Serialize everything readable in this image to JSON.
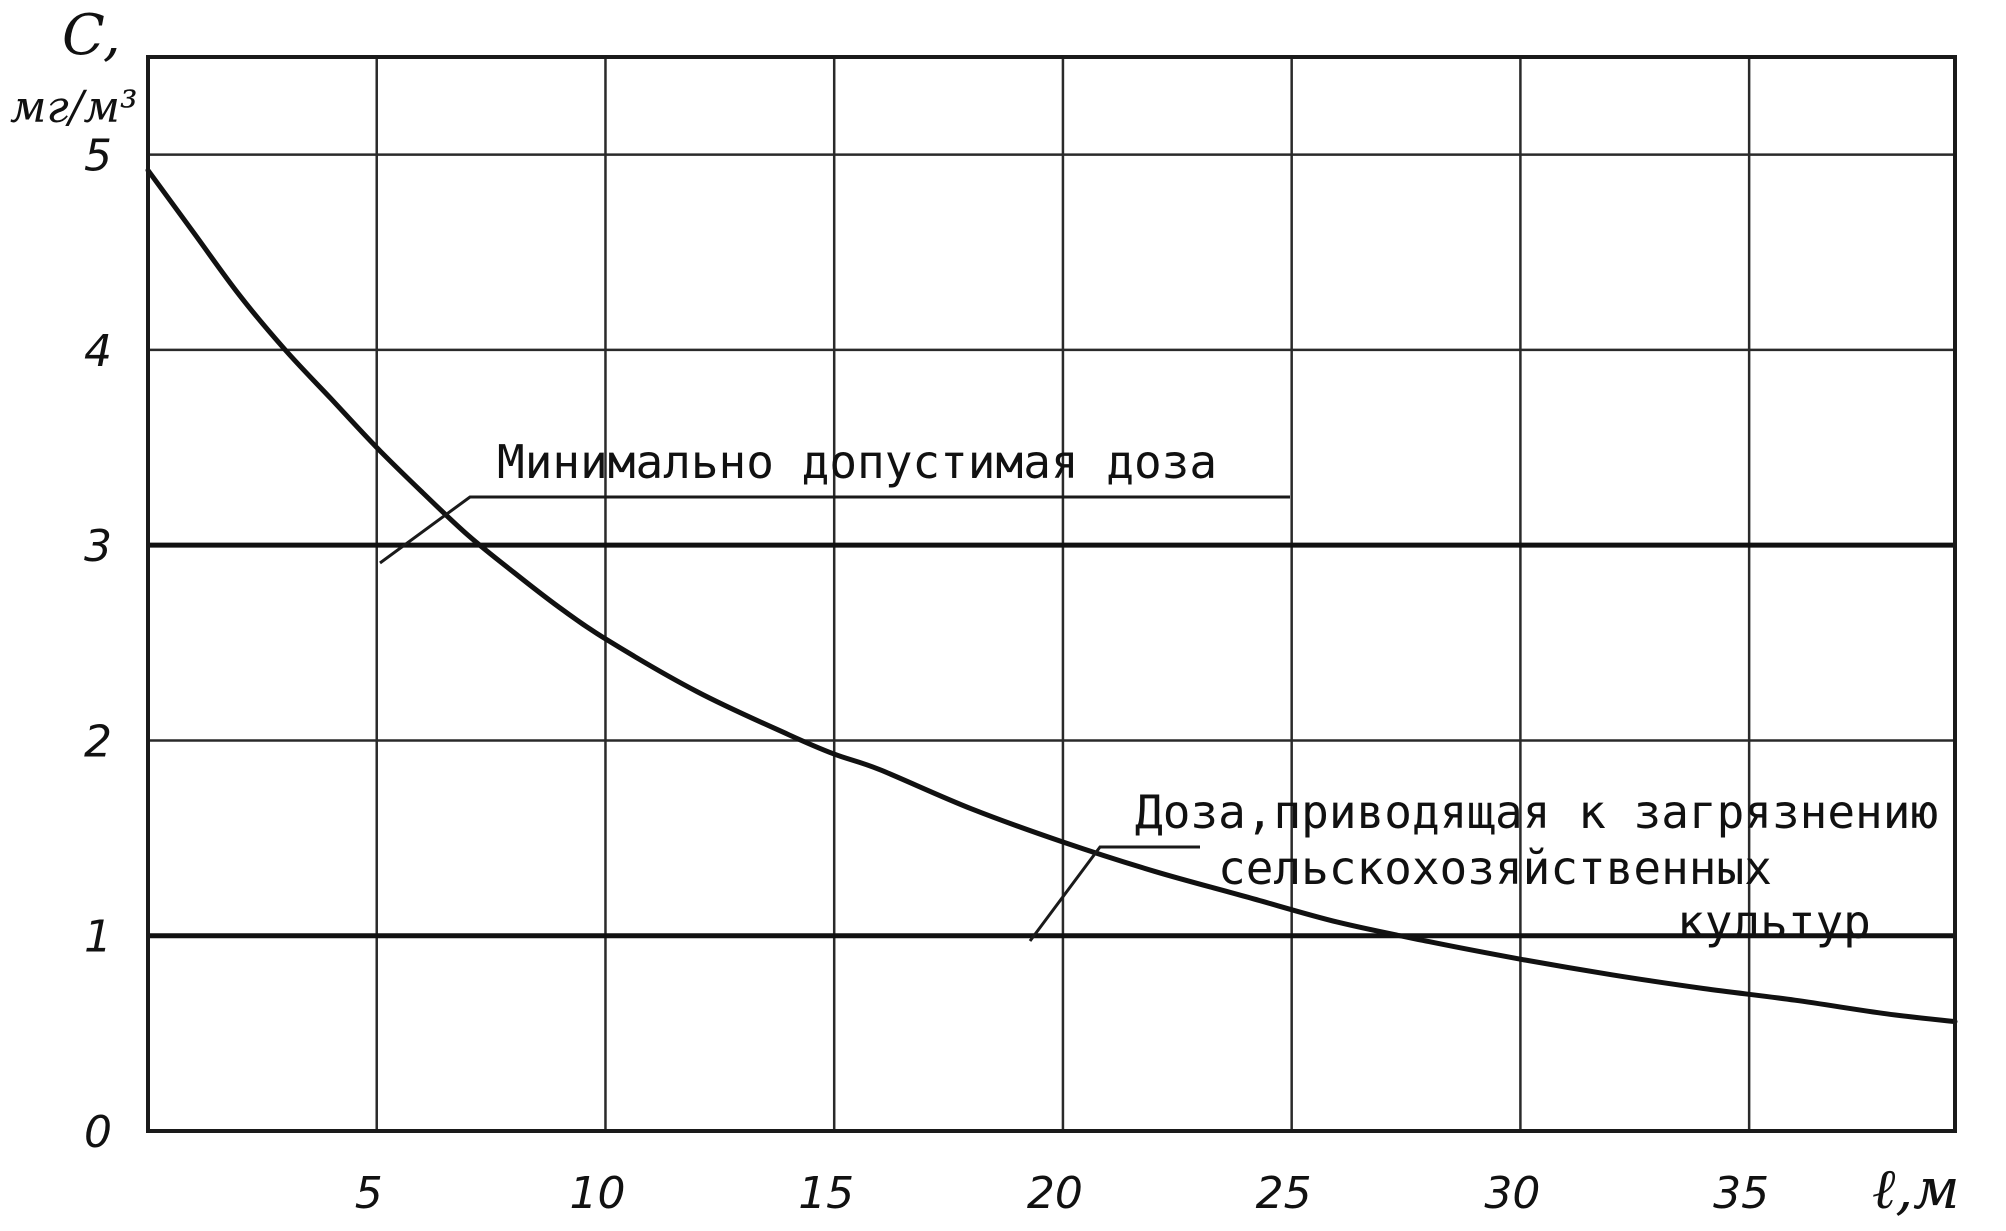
{
  "chart_data": {
    "type": "line",
    "y_axis": {
      "symbol": "C,",
      "unit": "мг/м³",
      "range": [
        0,
        5.5
      ],
      "ticks": [
        0,
        1,
        2,
        3,
        4,
        5
      ],
      "tick_labels": [
        "0",
        "1",
        "2",
        "3",
        "4",
        "5"
      ]
    },
    "x_axis": {
      "label": "ℓ,м",
      "range": [
        0,
        39.5
      ],
      "ticks": [
        5,
        10,
        15,
        20,
        25,
        30,
        35
      ],
      "tick_labels": [
        "5",
        "10",
        "15",
        "20",
        "25",
        "30",
        "35"
      ]
    },
    "grid": true,
    "series": [
      {
        "x": [
          0,
          1,
          2,
          3,
          4,
          5,
          6,
          7,
          8,
          9,
          10,
          12,
          14,
          15,
          16,
          18,
          20,
          22,
          24,
          26,
          28,
          30,
          32,
          34,
          36,
          38,
          39.5
        ],
        "y": [
          4.92,
          4.6,
          4.28,
          4.0,
          3.75,
          3.5,
          3.27,
          3.05,
          2.86,
          2.68,
          2.52,
          2.25,
          2.03,
          1.93,
          1.85,
          1.65,
          1.48,
          1.33,
          1.2,
          1.07,
          0.97,
          0.88,
          0.8,
          0.73,
          0.67,
          0.6,
          0.56
        ]
      }
    ],
    "reference_lines": [
      {
        "y": 3,
        "label": "Минимально допустимая доза"
      },
      {
        "y": 1,
        "label": [
          "Доза,приводящая к загрязнению",
          "сельскохозяйственных",
          "культур"
        ]
      }
    ]
  }
}
